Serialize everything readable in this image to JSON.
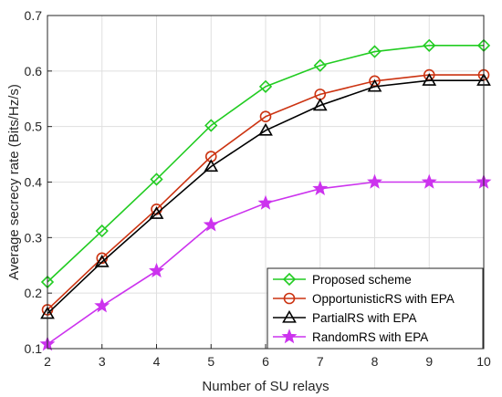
{
  "chart_data": {
    "type": "line",
    "title": "",
    "xlabel": "Number of SU relays",
    "ylabel": "Average secrecy rate (Bits/Hz/s)",
    "x": [
      2,
      3,
      4,
      5,
      6,
      7,
      8,
      9,
      10
    ],
    "xlim": [
      2,
      10
    ],
    "ylim": [
      0.1,
      0.7
    ],
    "xticks": [
      "2",
      "3",
      "4",
      "5",
      "6",
      "7",
      "8",
      "9",
      "10"
    ],
    "yticks": [
      "0.1",
      "0.2",
      "0.3",
      "0.4",
      "0.5",
      "0.6",
      "0.7"
    ],
    "grid": true,
    "legend_position": "bottom-right",
    "series": [
      {
        "name": "Proposed scheme",
        "marker": "diamond",
        "color": "#22cc22",
        "values": [
          0.22,
          0.312,
          0.405,
          0.502,
          0.572,
          0.61,
          0.635,
          0.646,
          0.646
        ]
      },
      {
        "name": "OpportunisticRS with EPA",
        "marker": "circle",
        "color": "#cc3311",
        "values": [
          0.17,
          0.263,
          0.351,
          0.446,
          0.518,
          0.558,
          0.582,
          0.593,
          0.593
        ]
      },
      {
        "name": "PartialRS with EPA",
        "marker": "triangle",
        "color": "#000000",
        "values": [
          0.163,
          0.256,
          0.343,
          0.428,
          0.493,
          0.538,
          0.572,
          0.583,
          0.583
        ]
      },
      {
        "name": "RandomRS with EPA",
        "marker": "star",
        "color": "#cc33ee",
        "values": [
          0.108,
          0.177,
          0.24,
          0.323,
          0.362,
          0.388,
          0.4,
          0.4,
          0.4
        ]
      }
    ]
  }
}
